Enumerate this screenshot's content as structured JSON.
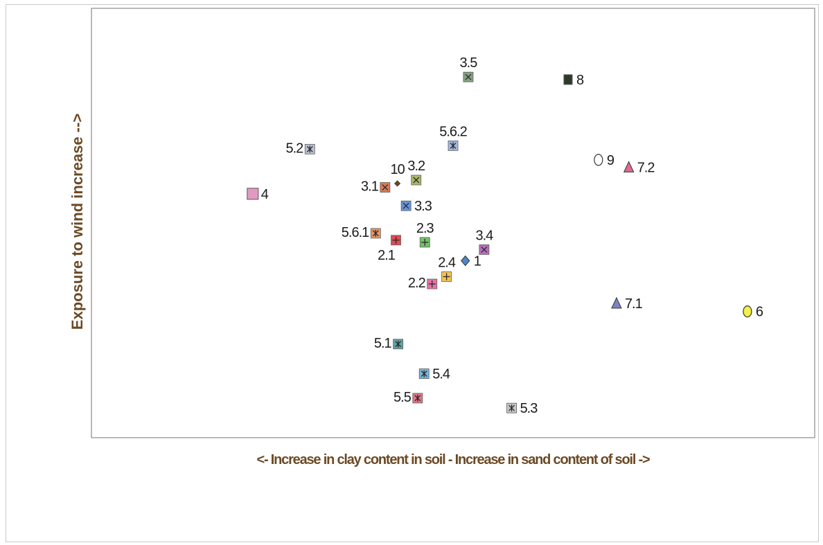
{
  "chart_data": {
    "type": "scatter",
    "title": "",
    "xlabel": "<- Increase in clay content in soil - Increase in sand content of soil ->",
    "ylabel": "Exposure to wind increase -->",
    "xlim": [
      0,
      100
    ],
    "ylim": [
      0,
      100
    ],
    "grid": false,
    "legend": "none",
    "points": [
      {
        "label": "1",
        "x": 51.7,
        "y": 41.2,
        "marker": "diamond",
        "color": "#4f86c6",
        "label_pos": "right"
      },
      {
        "label": "2.1",
        "x": 42.1,
        "y": 46.0,
        "marker": "plus-sq",
        "color": "#e0414b",
        "label_pos": "below-left"
      },
      {
        "label": "2.2",
        "x": 47.1,
        "y": 35.8,
        "marker": "plus-sq",
        "color": "#e86aa2",
        "label_pos": "left"
      },
      {
        "label": "2.3",
        "x": 46.1,
        "y": 45.5,
        "marker": "plus-sq",
        "color": "#6dbd63",
        "label_pos": "above"
      },
      {
        "label": "2.4",
        "x": 49.1,
        "y": 37.5,
        "marker": "plus-sq",
        "color": "#f2c14e",
        "label_pos": "above"
      },
      {
        "label": "3.1",
        "x": 40.6,
        "y": 58.3,
        "marker": "x-sq",
        "color": "#d9734a",
        "label_pos": "left"
      },
      {
        "label": "3.2",
        "x": 44.9,
        "y": 60.0,
        "marker": "x-sq",
        "color": "#a7b464",
        "label_pos": "above"
      },
      {
        "label": "3.3",
        "x": 43.5,
        "y": 54.0,
        "marker": "x-sq",
        "color": "#5b8fd9",
        "label_pos": "right"
      },
      {
        "label": "3.4",
        "x": 54.3,
        "y": 43.8,
        "marker": "x-sq",
        "color": "#b467b8",
        "label_pos": "above"
      },
      {
        "label": "3.5",
        "x": 52.1,
        "y": 84.0,
        "marker": "x-sq",
        "color": "#7f9e7a",
        "label_pos": "above"
      },
      {
        "label": "4",
        "x": 22.3,
        "y": 56.8,
        "marker": "square",
        "color": "#e39ac0",
        "label_pos": "right"
      },
      {
        "label": "5.1",
        "x": 42.4,
        "y": 21.8,
        "marker": "star-sq",
        "color": "#5b9ea3",
        "label_pos": "left"
      },
      {
        "label": "5.2",
        "x": 30.2,
        "y": 67.2,
        "marker": "star-sq",
        "color": "#b8bed1",
        "label_pos": "left"
      },
      {
        "label": "5.3",
        "x": 58.1,
        "y": 6.9,
        "marker": "star-sq",
        "color": "#c4c4c4",
        "label_pos": "right"
      },
      {
        "label": "5.4",
        "x": 46.0,
        "y": 14.9,
        "marker": "star-sq",
        "color": "#6fb3d6",
        "label_pos": "right"
      },
      {
        "label": "5.5",
        "x": 45.1,
        "y": 9.2,
        "marker": "star-sq",
        "color": "#e07083",
        "label_pos": "left"
      },
      {
        "label": "5.6.1",
        "x": 39.3,
        "y": 47.6,
        "marker": "star-sq",
        "color": "#e8925a",
        "label_pos": "left"
      },
      {
        "label": "5.6.2",
        "x": 50.0,
        "y": 68.0,
        "marker": "star-sq",
        "color": "#9fb5e3",
        "label_pos": "above"
      },
      {
        "label": "6",
        "x": 90.7,
        "y": 29.4,
        "marker": "circle",
        "color": "#f5ef4a",
        "label_pos": "right"
      },
      {
        "label": "7.1",
        "x": 72.6,
        "y": 31.3,
        "marker": "triangle",
        "color": "#7b84c4",
        "label_pos": "right"
      },
      {
        "label": "7.2",
        "x": 74.3,
        "y": 63.0,
        "marker": "triangle",
        "color": "#e06a8c",
        "label_pos": "right"
      },
      {
        "label": "8",
        "x": 65.9,
        "y": 83.4,
        "marker": "square",
        "color": "#2f3a2c",
        "label_pos": "right"
      },
      {
        "label": "9",
        "x": 70.1,
        "y": 64.7,
        "marker": "circle",
        "color": "#ffffff",
        "label_pos": "right"
      },
      {
        "label": "10",
        "x": 42.3,
        "y": 59.2,
        "marker": "small-diamond",
        "color": "#6b4a25",
        "label_pos": "above"
      }
    ]
  }
}
